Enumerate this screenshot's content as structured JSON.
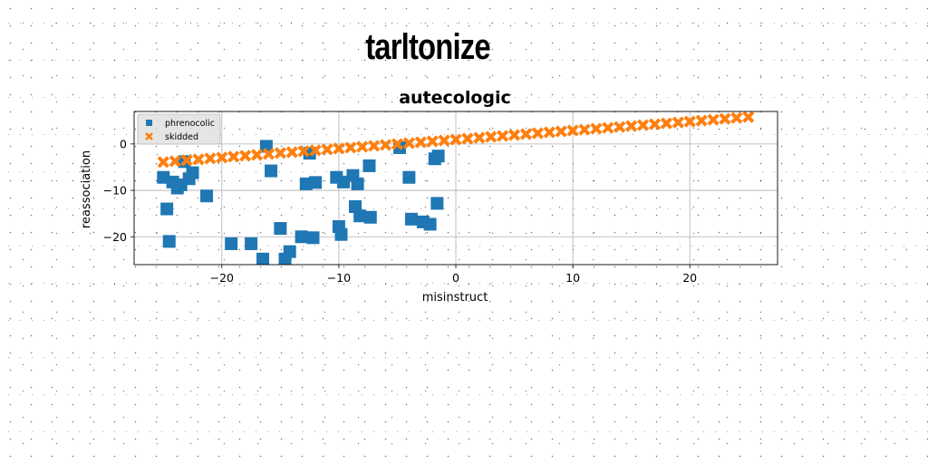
{
  "page": {
    "title": "tarltonize"
  },
  "chart_data": {
    "type": "scatter",
    "title": "autecologic",
    "xlabel": "misinstruct",
    "ylabel": "reassociation",
    "xlim": [
      -27.5,
      27.5
    ],
    "ylim": [
      -26,
      7
    ],
    "xticks": [
      -20,
      -10,
      0,
      10,
      20
    ],
    "yticks": [
      -20,
      -10,
      0
    ],
    "grid": true,
    "legend_position": "top-left",
    "series": [
      {
        "name": "phrenocolic",
        "marker": "square",
        "color": "#1f77b4",
        "x": [
          -25.0,
          -24.7,
          -24.5,
          -24.2,
          -23.8,
          -23.5,
          -23.2,
          -22.8,
          -22.5,
          -21.3,
          -19.2,
          -17.5,
          -16.5,
          -16.2,
          -15.8,
          -15.0,
          -14.6,
          -14.2,
          -13.2,
          -12.8,
          -12.5,
          -12.2,
          -12.0,
          -10.2,
          -10.0,
          -9.8,
          -9.6,
          -8.8,
          -8.6,
          -8.4,
          -8.2,
          -7.4,
          -7.3,
          -4.8,
          -4.0,
          -3.8,
          -2.8,
          -2.2,
          -1.8,
          -1.6,
          -1.5
        ],
        "y": [
          -7.2,
          -14.0,
          -21.0,
          -8.2,
          -9.5,
          -8.8,
          -3.8,
          -7.5,
          -6.2,
          -11.2,
          -21.5,
          -21.5,
          -24.8,
          -0.5,
          -5.8,
          -18.2,
          -24.8,
          -23.2,
          -20.0,
          -8.6,
          -2.0,
          -20.2,
          -8.3,
          -7.2,
          -17.8,
          -19.5,
          -8.2,
          -6.8,
          -13.5,
          -8.6,
          -15.5,
          -4.7,
          -15.8,
          -0.8,
          -7.2,
          -16.2,
          -16.8,
          -17.3,
          -3.2,
          -12.8,
          -2.6
        ]
      },
      {
        "name": "skidded",
        "marker": "x",
        "color": "#ff7f0e",
        "line": {
          "start": [
            -25.0,
            -3.9
          ],
          "end": [
            25.0,
            5.8
          ],
          "count": 51
        }
      }
    ]
  }
}
